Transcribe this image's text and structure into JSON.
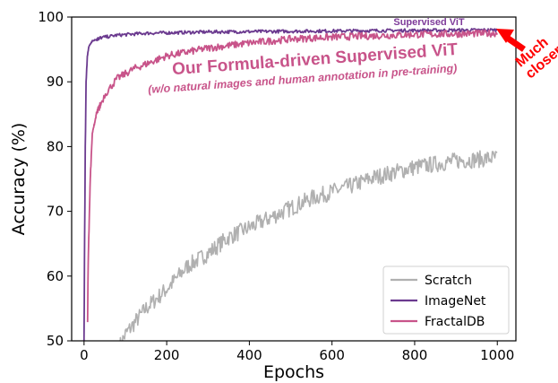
{
  "chart_data": {
    "type": "line",
    "xlabel": "Epochs",
    "ylabel": "Accuracy (%)",
    "xlim": [
      -30,
      1045
    ],
    "ylim": [
      50,
      100
    ],
    "xticks": [
      0,
      200,
      400,
      600,
      800,
      1000
    ],
    "yticks": [
      50,
      60,
      70,
      80,
      90,
      100
    ],
    "legend_position": "bottom-right",
    "grid": false,
    "series": [
      {
        "name": "Scratch",
        "color": "#b0b0b0",
        "noise": 1.3,
        "x": [
          0,
          85,
          100,
          150,
          200,
          250,
          300,
          350,
          400,
          450,
          500,
          550,
          600,
          650,
          700,
          750,
          800,
          850,
          900,
          950,
          1000
        ],
        "y": [
          null,
          49,
          51,
          55,
          58,
          61.5,
          63.5,
          66,
          67.5,
          69,
          70.5,
          72,
          73,
          74,
          75.2,
          76,
          76.8,
          77.3,
          77.8,
          78,
          78.3
        ]
      },
      {
        "name": "ImageNet",
        "color": "#6b3a8f",
        "noise": 0.25,
        "x": [
          0,
          1,
          3,
          5,
          8,
          12,
          20,
          40,
          80,
          150,
          300,
          500,
          700,
          1000
        ],
        "y": [
          50,
          62,
          80,
          90,
          94,
          95.5,
          96.3,
          96.8,
          97.2,
          97.5,
          97.7,
          97.8,
          97.9,
          98
        ]
      },
      {
        "name": "FractalDB",
        "color": "#c8548a",
        "noise": 0.55,
        "x": [
          0,
          8,
          10,
          15,
          20,
          30,
          50,
          80,
          120,
          200,
          300,
          400,
          500,
          600,
          700,
          800,
          900,
          1000
        ],
        "y": [
          null,
          50,
          62,
          75,
          82,
          85,
          88,
          90.5,
          92,
          94,
          95.2,
          96,
          96.6,
          96.9,
          97.1,
          97.3,
          97.4,
          97.5
        ]
      }
    ],
    "annotations": {
      "supervised_label": "Supervised ViT",
      "formula_title": "Our Formula-driven Supervised ViT",
      "formula_subtitle": "(w/o natural images and human annotation in pre-training)",
      "closer_line1": "Much",
      "closer_line2": "closer",
      "colors": {
        "supervised": "#7e3b9a",
        "formula": "#c8548a",
        "closer": "#ff0000"
      }
    }
  }
}
